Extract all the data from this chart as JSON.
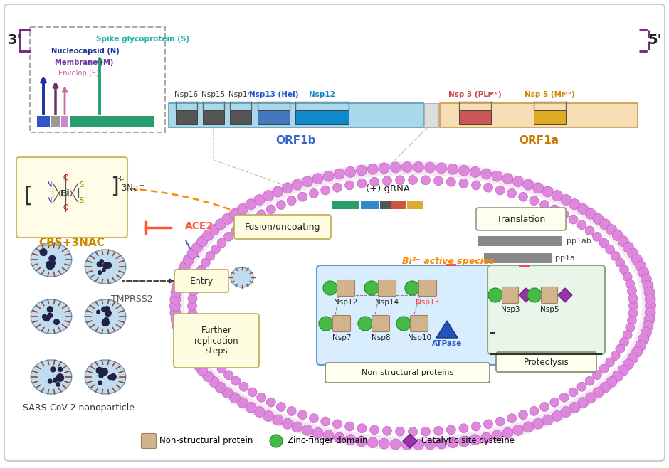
{
  "title": "",
  "prime3_label": "3'",
  "prime5_label": "5'",
  "genome_labels": {
    "spike": "Spike glycoprotein (S)",
    "nucleocapsid": "Nucleocapsid (N)",
    "membrane": "Membrane (M)",
    "envelop": "Envelop (E)"
  },
  "orf1b_label": "ORF1b",
  "orf1a_label": "ORF1a",
  "cbs_label": "CBS+3NAC",
  "bi3_label": "Bi³⁺ active species",
  "ace2_label": "ACE2",
  "entry_label": "Entry",
  "fusion_label": "Fusion/uncoating",
  "translation_label": "Translation",
  "pp1ab_label": "pp1ab",
  "pp1a_label": "pp1a",
  "grna_label": "(+) gRNA",
  "tmprss2_label": "TMPRSS2",
  "nanoparticle_label": "SARS-CoV-2 nanoparticle",
  "further_rep_label": "Further\nreplication\nsteps",
  "proteolysis_label": "Proteolysis",
  "nonstructural_label": "Non-structural proteins",
  "legend_items": [
    "Non-structural protein",
    "Zinc-finger domain",
    "Catalytic site cysteine"
  ],
  "colors": {
    "panel_bg": "#ffffff",
    "panel_border": "#cccccc",
    "prime_bracket_solid": "#7b2d8b",
    "prime_bracket_dashed": "#7b2d8b",
    "struct_box_border": "#999999",
    "genome_N": "#3355cc",
    "genome_M": "#888888",
    "genome_E": "#cc88cc",
    "genome_S": "#2a9d6f",
    "arrow_N": "#1a3399",
    "arrow_M": "#663366",
    "arrow_E": "#cc66aa",
    "arrow_S": "#2a9d6f",
    "spike_color": "#20b2aa",
    "nucleocapsid_color": "#1a3399",
    "membrane_color": "#663399",
    "envelop_color": "#cc66aa",
    "orf1b_fill": "#a8d8ea",
    "orf1b_border": "#5599bb",
    "orf1b_text": "#3366cc",
    "orf1b_nsp_gray": "#555555",
    "orf1b_nsp13": "#4477cc",
    "orf1b_nsp12": "#1188cc",
    "orf1a_fill": "#f5deb3",
    "orf1a_border": "#cc9944",
    "orf1a_text": "#cc7700",
    "orf1a_nsp3_fill": "#cc5555",
    "orf1a_nsp3_text": "#cc4444",
    "orf1a_nsp5_fill": "#ddaa22",
    "orf1a_nsp5_text": "#cc8800",
    "bracket_gray": "#777777",
    "cell_bead": "#dd88dd",
    "cell_bead_edge": "#bb55bb",
    "cell_fill_outer": "#f5e8f5",
    "cell_fill_inner": "#ffffff",
    "cbs_box_fill": "#fffde8",
    "cbs_box_border": "#ccbb66",
    "cbs_text": "#cc8800",
    "bi3_text": "#ff8800",
    "ace2_text": "#ff5533",
    "inhibit_color": "#ff5533",
    "entry_fill": "#fffde0",
    "entry_border": "#bbaa55",
    "fusion_fill": "#fffde0",
    "fusion_border": "#bbaa55",
    "further_fill": "#fffde0",
    "further_border": "#bbaa55",
    "translation_fill": "#fffff0",
    "translation_border": "#999988",
    "proteolysis_fill": "#fffff0",
    "proteolysis_border": "#999988",
    "grna_green": "#2a9d6f",
    "grna_blue": "#3388cc",
    "grna_darkgray": "#666666",
    "grna_red": "#cc5544",
    "grna_orange": "#ddaa33",
    "pp1_color": "#888888",
    "nsp_bg": "#d8eeff",
    "nsp_bg_border": "#6699cc",
    "prot_bg": "#e8f5e8",
    "prot_bg_border": "#88aa88",
    "nsp_tan": "#d2b48c",
    "nsp_tan_edge": "#a08060",
    "zinc_green": "#44bb44",
    "zinc_edge": "#228822",
    "diamond_purple": "#9933aa",
    "diamond_edge": "#661188",
    "atpase_blue": "#2255bb",
    "dark_arrow": "#333333",
    "orange_arrow": "#ff8800",
    "red_inhibit": "#ff4444",
    "virus_outer": "#b8d8f0",
    "virus_edge": "#6699bb",
    "virus_inner": "#222244",
    "virus_spike": "#884400",
    "dashed_line": "#666666"
  }
}
